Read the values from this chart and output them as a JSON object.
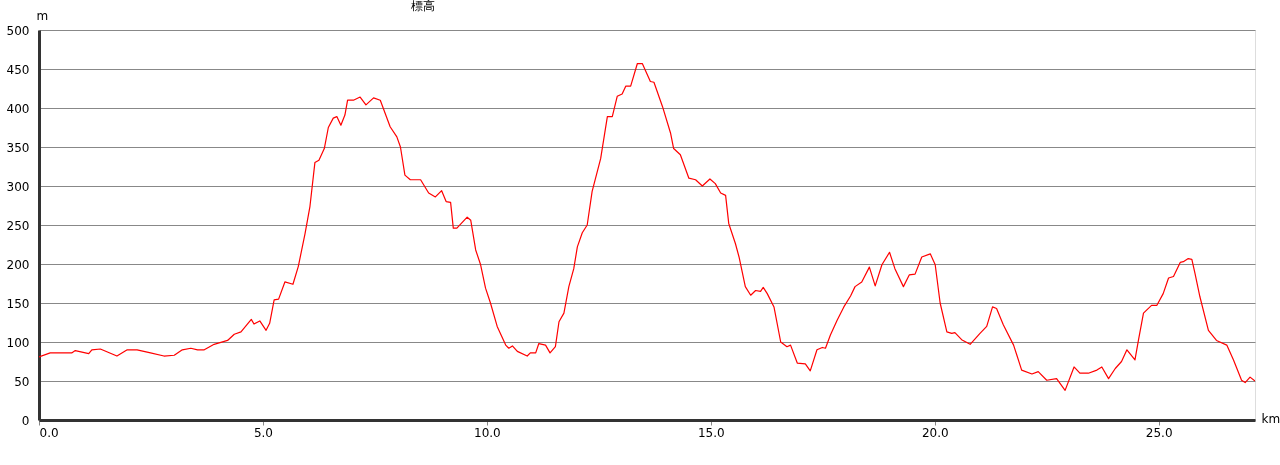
{
  "chart_data": {
    "type": "line",
    "title": "標高",
    "xlabel": "km",
    "ylabel": "m",
    "x": [
      0,
      0.25,
      0.73,
      0.81,
      1.11,
      1.18,
      1.37,
      1.74,
      1.97,
      2.19,
      2.49,
      2.79,
      3.02,
      3.2,
      3.39,
      3.54,
      3.69,
      3.91,
      4.21,
      4.36,
      4.51,
      4.74,
      4.8,
      4.93,
      5.07,
      5.15,
      5.25,
      5.35,
      5.49,
      5.67,
      5.79,
      5.94,
      6.05,
      6.16,
      6.25,
      6.37,
      6.46,
      6.57,
      6.65,
      6.74,
      6.83,
      6.89,
      7.02,
      7.17,
      7.3,
      7.47,
      7.62,
      7.84,
      7.99,
      8.07,
      8.17,
      8.29,
      8.52,
      8.7,
      8.85,
      8.99,
      9.09,
      9.19,
      9.25,
      9.33,
      9.56,
      9.64,
      9.75,
      9.86,
      9.97,
      10.08,
      10.23,
      10.42,
      10.49,
      10.57,
      10.68,
      10.9,
      10.97,
      11.09,
      11.16,
      11.31,
      11.41,
      11.53,
      11.61,
      11.72,
      11.83,
      11.94,
      12.02,
      12.13,
      12.24,
      12.35,
      12.54,
      12.69,
      12.8,
      12.91,
      13.02,
      13.1,
      13.21,
      13.36,
      13.47,
      13.65,
      13.73,
      13.92,
      14.1,
      14.17,
      14.32,
      14.51,
      14.66,
      14.81,
      14.98,
      15.1,
      15.22,
      15.33,
      15.4,
      15.55,
      15.63,
      15.77,
      15.89,
      16.0,
      16.11,
      16.17,
      16.26,
      16.41,
      16.56,
      16.7,
      16.78,
      16.93,
      17.11,
      17.22,
      17.37,
      17.49,
      17.56,
      17.67,
      17.82,
      17.97,
      18.12,
      18.22,
      18.37,
      18.54,
      18.67,
      18.82,
      18.99,
      19.11,
      19.3,
      19.43,
      19.56,
      19.71,
      19.9,
      20.01,
      20.12,
      20.27,
      20.38,
      20.45,
      20.6,
      20.79,
      21.01,
      21.16,
      21.29,
      21.38,
      21.53,
      21.76,
      21.94,
      22.17,
      22.31,
      22.5,
      22.72,
      22.91,
      23.11,
      23.24,
      23.43,
      23.62,
      23.73,
      23.88,
      24.03,
      24.17,
      24.29,
      24.47,
      24.55,
      24.66,
      24.84,
      24.96,
      25.1,
      25.22,
      25.33,
      25.48,
      25.55,
      25.66,
      25.74,
      25.81,
      25.92,
      26.11,
      26.29,
      26.52,
      26.67,
      26.85,
      26.93,
      27.04,
      27.15
    ],
    "series": [
      {
        "color": "#ff0000",
        "values": [
          81,
          86,
          86,
          89,
          85,
          90,
          91,
          82,
          90,
          90,
          86,
          82,
          83,
          90,
          92,
          90,
          90,
          97,
          102,
          110,
          113,
          129,
          123,
          127,
          115,
          124,
          154,
          155,
          177,
          174,
          197,
          239,
          274,
          330,
          333,
          348,
          375,
          387,
          389,
          378,
          391,
          410,
          410,
          414,
          404,
          413,
          410,
          376,
          363,
          350,
          314,
          308,
          308,
          291,
          286,
          294,
          280,
          279,
          246,
          246,
          260,
          256,
          218,
          199,
          169,
          150,
          120,
          96,
          92,
          95,
          88,
          82,
          86,
          86,
          98,
          96,
          86,
          94,
          126,
          137,
          171,
          194,
          222,
          240,
          250,
          293,
          335,
          389,
          389,
          415,
          418,
          428,
          428,
          457,
          457,
          434,
          433,
          402,
          368,
          348,
          340,
          310,
          308,
          300,
          309,
          303,
          291,
          288,
          252,
          226,
          209,
          171,
          160,
          166,
          165,
          170,
          162,
          145,
          100,
          94,
          96,
          73,
          72,
          63,
          90,
          93,
          92,
          109,
          128,
          145,
          159,
          171,
          177,
          196,
          172,
          199,
          215,
          194,
          171,
          186,
          187,
          209,
          213,
          199,
          150,
          113,
          111,
          112,
          103,
          97,
          111,
          120,
          145,
          143,
          122,
          96,
          64,
          59,
          62,
          51,
          53,
          38,
          68,
          60,
          60,
          64,
          68,
          53,
          66,
          75,
          90,
          77,
          103,
          137,
          147,
          147,
          162,
          182,
          184,
          202,
          203,
          207,
          206,
          188,
          158,
          115,
          102,
          96,
          77,
          51,
          48,
          55,
          50
        ]
      }
    ],
    "xlim": [
      0,
      27.15
    ],
    "xticks": [
      {
        "value": 0,
        "label": "0.0"
      },
      {
        "value": 5,
        "label": "5.0"
      },
      {
        "value": 10,
        "label": "10.0"
      },
      {
        "value": 15,
        "label": "15.0"
      },
      {
        "value": 20,
        "label": "20.0"
      },
      {
        "value": 25,
        "label": "25.0"
      }
    ],
    "ylim": [
      0,
      500
    ],
    "yticks": [
      0,
      50,
      100,
      150,
      200,
      250,
      300,
      350,
      400,
      450,
      500
    ],
    "grid": "y",
    "marker": "none",
    "line_style": "solid"
  }
}
